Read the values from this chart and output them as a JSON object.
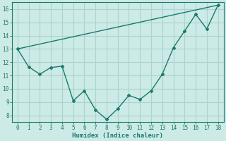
{
  "xlabel": "Humidex (Indice chaleur)",
  "ylabel": "",
  "background_color": "#cceae6",
  "grid_color": "#aad4d0",
  "line_color": "#1a7a6e",
  "xlim": [
    -0.5,
    18.5
  ],
  "ylim": [
    7.5,
    16.5
  ],
  "yticks": [
    8,
    9,
    10,
    11,
    12,
    13,
    14,
    15,
    16
  ],
  "xticks": [
    0,
    1,
    2,
    3,
    4,
    5,
    6,
    7,
    8,
    9,
    10,
    11,
    12,
    13,
    14,
    15,
    16,
    17,
    18
  ],
  "line1_x": [
    0,
    1,
    2,
    3,
    4,
    5,
    6,
    7,
    8,
    9,
    10,
    11,
    12,
    13,
    14,
    15,
    16,
    17,
    18
  ],
  "line1_y": [
    13.0,
    11.65,
    11.1,
    11.6,
    11.7,
    9.1,
    9.85,
    8.4,
    7.7,
    8.5,
    9.5,
    9.2,
    9.85,
    11.1,
    13.1,
    14.35,
    15.6,
    14.5,
    16.3
  ],
  "line2_x": [
    0,
    18
  ],
  "line2_y": [
    13.0,
    16.3
  ]
}
